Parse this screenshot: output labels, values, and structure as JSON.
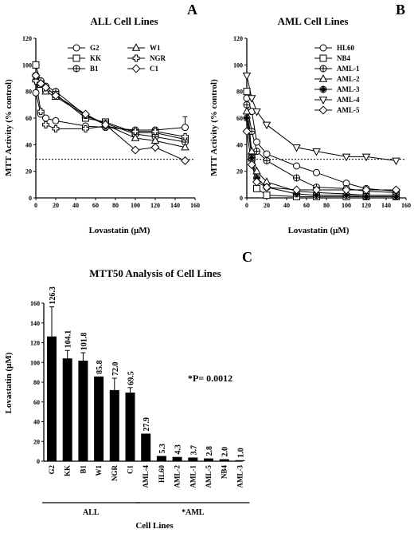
{
  "panels": {
    "a": "A",
    "b": "B",
    "c": "C"
  },
  "chart_data": [
    {
      "type": "line",
      "title": "ALL Cell Lines",
      "ylabel": "MTT Activity (% control)",
      "xlabel": "Lovastatin (μM)",
      "xlim": [
        0,
        160
      ],
      "ylim": [
        0,
        120
      ],
      "xticks": [
        0,
        20,
        40,
        60,
        80,
        100,
        120,
        140,
        160
      ],
      "yticks": [
        0,
        20,
        40,
        60,
        80,
        100,
        120
      ],
      "threshold": 29,
      "x": [
        0,
        5,
        10,
        20,
        50,
        70,
        100,
        120,
        150
      ],
      "series": [
        {
          "name": "G2",
          "marker": "circle",
          "values": [
            79,
            63,
            60,
            58,
            54,
            53,
            51,
            51,
            53
          ]
        },
        {
          "name": "KK",
          "marker": "square",
          "values": [
            100,
            86,
            82,
            78,
            60,
            57,
            49,
            49,
            44
          ]
        },
        {
          "name": "B1",
          "marker": "oplus",
          "values": [
            92,
            88,
            84,
            80,
            62,
            56,
            48,
            46,
            42
          ]
        },
        {
          "name": "W1",
          "marker": "triangle",
          "values": [
            90,
            85,
            80,
            76,
            62,
            55,
            45,
            43,
            38
          ]
        },
        {
          "name": "NGR",
          "marker": "cross",
          "values": [
            88,
            65,
            55,
            52,
            52,
            54,
            50,
            50,
            46
          ]
        },
        {
          "name": "C1",
          "marker": "diamond",
          "values": [
            92,
            86,
            83,
            77,
            63,
            55,
            36,
            38,
            28
          ]
        }
      ],
      "error_bars": [
        {
          "series": "G2",
          "x": 150,
          "value": 53,
          "error": 8
        }
      ]
    },
    {
      "type": "line",
      "title": "AML Cell Lines",
      "ylabel": "MTT Activity (% control)",
      "xlabel": "Lovastatin (μM)",
      "xlim": [
        0,
        160
      ],
      "ylim": [
        0,
        120
      ],
      "xticks": [
        0,
        20,
        40,
        60,
        80,
        100,
        120,
        140,
        160
      ],
      "yticks": [
        0,
        20,
        40,
        60,
        80,
        100,
        120
      ],
      "threshold": 29,
      "x": [
        0,
        5,
        10,
        20,
        50,
        70,
        100,
        120,
        150
      ],
      "series": [
        {
          "name": "HL60",
          "marker": "circle",
          "values": [
            75,
            65,
            42,
            33,
            24,
            19,
            11,
            7,
            5
          ]
        },
        {
          "name": "NB4",
          "marker": "square",
          "values": [
            80,
            30,
            7,
            2,
            1,
            1,
            1,
            1,
            1
          ]
        },
        {
          "name": "AML-1",
          "marker": "oplus",
          "values": [
            70,
            50,
            35,
            28,
            15,
            8,
            7,
            5,
            4
          ]
        },
        {
          "name": "AML-2",
          "marker": "triangle",
          "values": [
            65,
            35,
            20,
            12,
            5,
            4,
            3,
            2,
            2
          ]
        },
        {
          "name": "AML-3",
          "marker": "dotcircle",
          "values": [
            60,
            30,
            15,
            8,
            3,
            2,
            2,
            1,
            1
          ]
        },
        {
          "name": "AML-4",
          "marker": "invtri",
          "values": [
            92,
            75,
            65,
            55,
            38,
            35,
            31,
            31,
            28
          ]
        },
        {
          "name": "AML-5",
          "marker": "diamond",
          "values": [
            50,
            25,
            12,
            8,
            6,
            6,
            6,
            6,
            6
          ]
        }
      ]
    },
    {
      "type": "bar",
      "title": "MTT50 Analysis of Cell Lines",
      "ylabel": "Lovastatin (μM)",
      "xlabel": "Cell Lines",
      "ylim": [
        0,
        160
      ],
      "yticks": [
        0,
        20,
        40,
        60,
        80,
        100,
        120,
        140,
        160
      ],
      "categories": [
        "G2",
        "KK",
        "B1",
        "W1",
        "NGR",
        "C1",
        "AML-4",
        "HL60",
        "AML-2",
        "AML-1",
        "AML-5",
        "NB4",
        "AML-3"
      ],
      "values": [
        126.3,
        104.1,
        101.8,
        85.8,
        72.0,
        69.5,
        27.9,
        5.3,
        4.3,
        3.7,
        2.8,
        2.0,
        1.0
      ],
      "value_labels": [
        "126.3",
        "104.1",
        "101.8",
        "85.8",
        "72.0",
        "69.5",
        "27.9",
        "5.3",
        "4.3",
        "3.7",
        "2.8",
        "2.0",
        "1.0"
      ],
      "errors": [
        30,
        8,
        8,
        0,
        12,
        5,
        0,
        0,
        0,
        0,
        0,
        0,
        0
      ],
      "groups": [
        {
          "label": "ALL",
          "from": 0,
          "to": 5
        },
        {
          "label": "*AML",
          "from": 6,
          "to": 12
        }
      ],
      "annotation": "*P=  0.0012"
    }
  ]
}
